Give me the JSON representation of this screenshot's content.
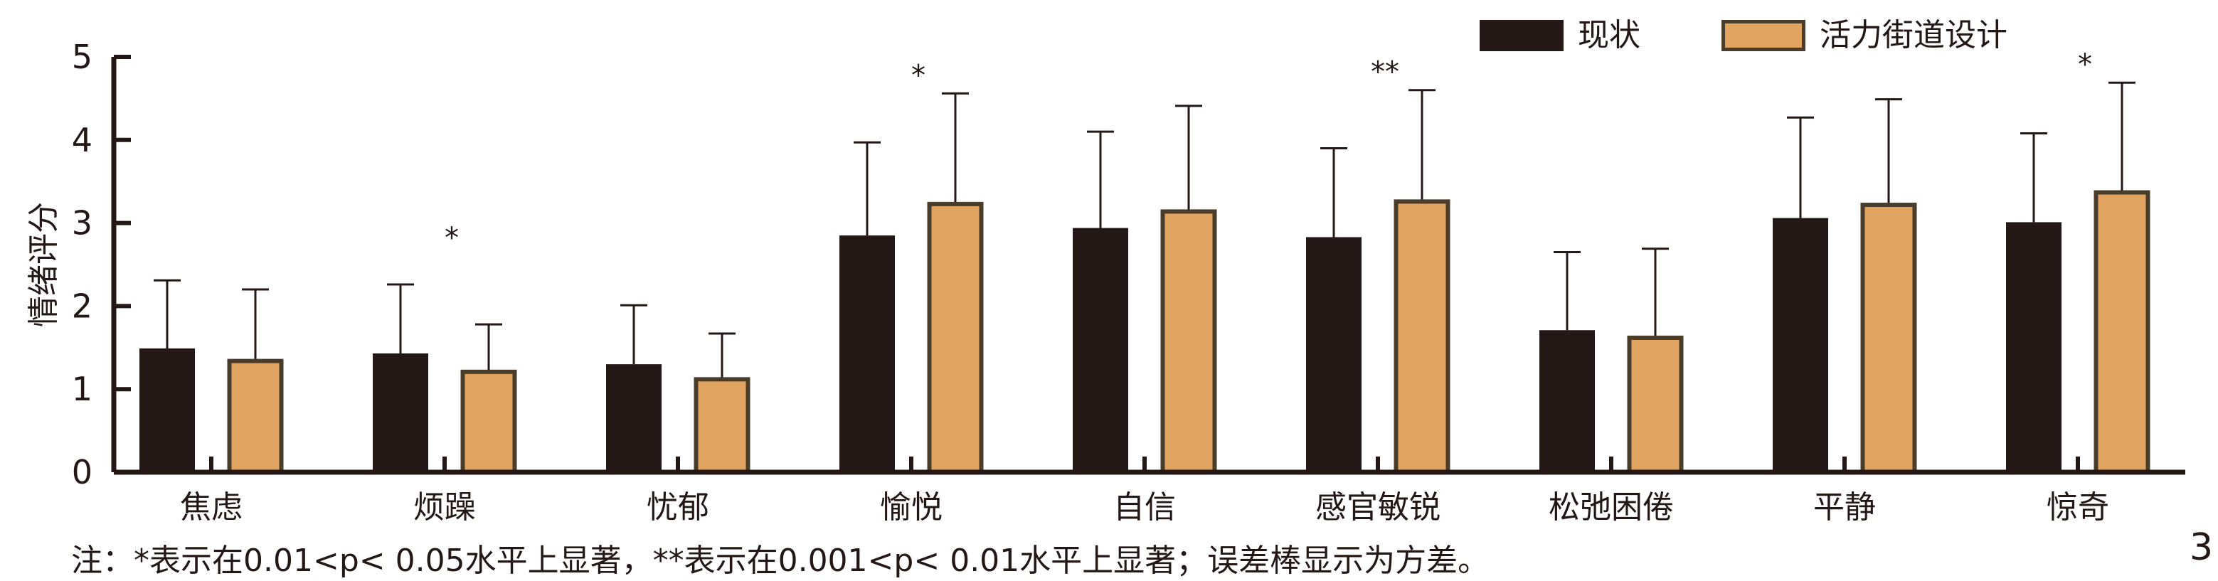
{
  "chart_data": {
    "type": "bar",
    "ylabel": "情绪评分",
    "ylim": [
      0,
      5
    ],
    "yticks": [
      "0",
      "1",
      "2",
      "3",
      "4",
      "5"
    ],
    "legend_position": "top-right",
    "categories": [
      "焦虑",
      "烦躁",
      "忧郁",
      "愉悦",
      "自信",
      "感官敏锐",
      "松弛困倦",
      "平静",
      "惊奇"
    ],
    "series": [
      {
        "name": "现状",
        "color": "#231815",
        "values": [
          1.49,
          1.43,
          1.3,
          2.85,
          2.94,
          2.83,
          1.71,
          3.06,
          3.01
        ],
        "errors": [
          0.82,
          0.83,
          0.71,
          1.12,
          1.16,
          1.07,
          0.94,
          1.21,
          1.07
        ]
      },
      {
        "name": "活力街道设计",
        "color": "#e0a460",
        "values": [
          1.36,
          1.23,
          1.14,
          3.25,
          3.16,
          3.28,
          1.64,
          3.24,
          3.39
        ],
        "errors": [
          0.84,
          0.55,
          0.53,
          1.31,
          1.25,
          1.32,
          1.05,
          1.25,
          1.3
        ]
      }
    ],
    "significance": [
      "",
      "*",
      "",
      "*",
      "",
      "**",
      "",
      "",
      "*"
    ]
  },
  "note": "注：*表示在0.01<p< 0.05水平上显著，**表示在0.001<p< 0.01水平上显著；误差棒显示为方差。",
  "page_number": "3"
}
